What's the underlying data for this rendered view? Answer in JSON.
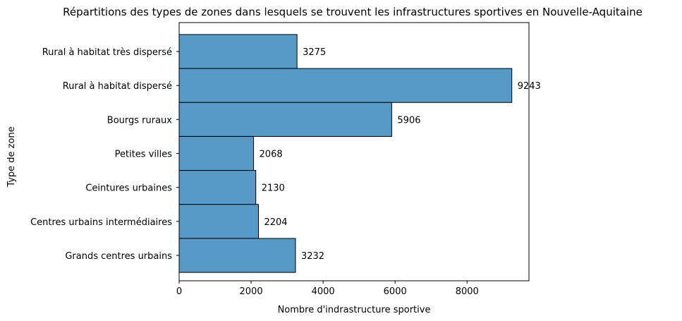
{
  "chart_data": {
    "type": "bar",
    "orientation": "horizontal",
    "title": "Répartitions des types de zones dans lesquels se trouvent les infrastructures sportives en Nouvelle-Aquitaine",
    "xlabel": "Nombre d'indrastructure sportive",
    "ylabel": "Type de zone",
    "categories": [
      "Rural à habitat très dispersé",
      "Rural à habitat dispersé",
      "Bourgs ruraux",
      "Petites villes",
      "Ceintures urbaines",
      "Centres urbains intermédiaires",
      "Grands centres urbains"
    ],
    "values": [
      3275,
      9243,
      5906,
      2068,
      2130,
      2204,
      3232
    ],
    "data_labels": [
      "3275",
      "9243",
      "5906",
      "2068",
      "2130",
      "2204",
      "3232"
    ],
    "xlim": [
      0,
      9719
    ],
    "xticks": [
      0,
      2000,
      4000,
      6000,
      8000
    ],
    "xtick_labels": [
      "0",
      "2000",
      "4000",
      "6000",
      "8000"
    ],
    "grid": false,
    "legend": "none",
    "bar_color": "#5799c7",
    "bar_edge_color": "#000000"
  }
}
